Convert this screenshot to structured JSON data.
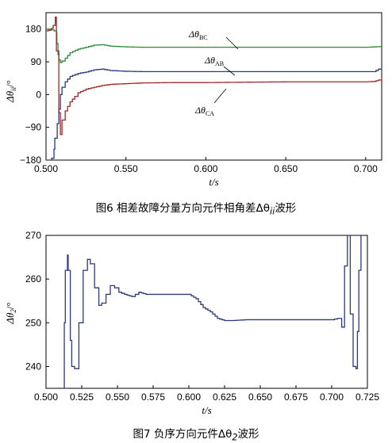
{
  "chart_data": [
    {
      "type": "line",
      "caption": "图6 相差故障分量方向元件相角差Δθ",
      "caption_sub": "ii",
      "caption_tail": "波形",
      "xlabel": "t/s",
      "ylabel": "Δθ",
      "ylabel_sub": "ii",
      "ylabel_unit": "/°",
      "xlim": [
        0.5,
        0.71
      ],
      "ylim": [
        -180,
        225
      ],
      "xticks": [
        "0.500",
        "0.550",
        "0.600",
        "0.650",
        "0.700"
      ],
      "xtick_values": [
        0.5,
        0.55,
        0.6,
        0.65,
        0.7
      ],
      "yticks": [
        "180",
        "90",
        "0",
        "−90",
        "−180"
      ],
      "ytick_values": [
        180,
        90,
        0,
        -90,
        -180
      ],
      "series": [
        {
          "name": "BC",
          "color": "#2e8b3a",
          "x": [
            0.5,
            0.503,
            0.5035,
            0.505,
            0.5065,
            0.5068,
            0.5075,
            0.508,
            0.509,
            0.51,
            0.512,
            0.515,
            0.52,
            0.525,
            0.53,
            0.535,
            0.54,
            0.55,
            0.56,
            0.58,
            0.6,
            0.65,
            0.7,
            0.705,
            0.71
          ],
          "values": [
            180,
            180,
            178,
            175,
            170,
            140,
            110,
            95,
            88,
            92,
            100,
            115,
            125,
            130,
            136,
            137,
            133,
            131,
            130,
            130,
            130,
            130,
            130,
            131,
            132
          ]
        },
        {
          "name": "AB",
          "color": "#2d3a7a",
          "x": [
            0.5,
            0.503,
            0.5035,
            0.505,
            0.5055,
            0.507,
            0.508,
            0.509,
            0.51,
            0.512,
            0.515,
            0.52,
            0.525,
            0.53,
            0.535,
            0.54,
            0.55,
            0.56,
            0.58,
            0.6,
            0.65,
            0.7,
            0.705,
            0.708,
            0.71
          ],
          "values": [
            -180,
            -180,
            -175,
            -150,
            -120,
            -80,
            -40,
            0,
            20,
            35,
            50,
            58,
            62,
            68,
            70,
            66,
            64,
            63,
            63,
            63,
            63,
            63,
            63,
            70,
            80
          ]
        },
        {
          "name": "CA",
          "color": "#a02828",
          "x": [
            0.5,
            0.503,
            0.5035,
            0.5045,
            0.5058,
            0.506,
            0.5065,
            0.508,
            0.509,
            0.51,
            0.512,
            0.515,
            0.518,
            0.52,
            0.525,
            0.53,
            0.535,
            0.54,
            0.55,
            0.56,
            0.58,
            0.6,
            0.65,
            0.7,
            0.705,
            0.708,
            0.71
          ],
          "values": [
            175,
            178,
            182,
            190,
            213,
            213,
            120,
            -50,
            -110,
            -70,
            -45,
            -20,
            -5,
            5,
            15,
            20,
            25,
            28,
            30,
            32,
            33,
            33,
            35,
            35,
            36,
            40,
            50
          ]
        }
      ],
      "series_labels": [
        {
          "name": "BC",
          "text": "Δθ",
          "sub": "BC"
        },
        {
          "name": "AB",
          "text": "Δθ",
          "sub": "AB"
        },
        {
          "name": "CA",
          "text": "Δθ",
          "sub": "CA"
        }
      ]
    },
    {
      "type": "line",
      "caption": "图7 负序方向元件Δθ",
      "caption_sub": "2",
      "caption_tail": "波形",
      "xlabel": "t/s",
      "ylabel": "Δθ",
      "ylabel_sub": "2",
      "ylabel_unit": "/°",
      "xlim": [
        0.5,
        0.725
      ],
      "ylim": [
        235,
        270
      ],
      "xticks": [
        "0.500",
        "0.525",
        "0.550",
        "0.575",
        "0.600",
        "0.625",
        "0.650",
        "0.675",
        "0.700",
        "0.725"
      ],
      "xtick_values": [
        0.5,
        0.525,
        0.55,
        0.575,
        0.6,
        0.625,
        0.65,
        0.675,
        0.7,
        0.725
      ],
      "yticks": [
        "270",
        "260",
        "250",
        "240"
      ],
      "ytick_values": [
        270,
        260,
        250,
        240
      ],
      "series": [
        {
          "name": "Δθ2",
          "color": "#2d3a7a",
          "x": [
            0.5125,
            0.5128,
            0.5135,
            0.515,
            0.5155,
            0.517,
            0.518,
            0.52,
            0.523,
            0.526,
            0.529,
            0.531,
            0.534,
            0.537,
            0.539,
            0.542,
            0.545,
            0.548,
            0.551,
            0.555,
            0.56,
            0.565,
            0.57,
            0.575,
            0.58,
            0.585,
            0.59,
            0.595,
            0.6,
            0.605,
            0.61,
            0.615,
            0.62,
            0.625,
            0.63,
            0.64,
            0.65,
            0.66,
            0.67,
            0.68,
            0.69,
            0.7,
            0.704,
            0.707,
            0.709,
            0.711,
            0.713,
            0.715,
            0.717,
            0.718,
            0.719,
            0.7205
          ],
          "values": [
            235,
            250,
            262,
            265.5,
            262,
            246,
            240,
            239.5,
            250,
            262,
            264.5,
            263.5,
            258,
            254,
            254.5,
            256.5,
            258.5,
            258,
            257,
            256.5,
            256,
            257,
            256.5,
            256.5,
            256.5,
            256.5,
            256.5,
            256.5,
            256.5,
            255.5,
            253.5,
            252.5,
            251,
            250.5,
            250.5,
            250.7,
            250.7,
            250.7,
            250.7,
            250.7,
            250.7,
            250.7,
            251,
            249,
            263,
            270,
            252,
            240,
            239.5,
            248,
            262,
            270
          ]
        }
      ]
    }
  ]
}
